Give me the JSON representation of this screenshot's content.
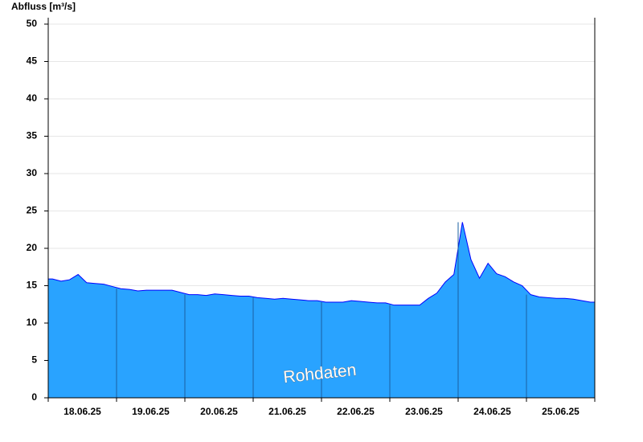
{
  "chart_data": {
    "type": "area",
    "y_label": "Abfluss [m³/s]",
    "annotation": "Rohdaten",
    "categories": [
      null,
      null,
      null,
      null,
      "18.06.25",
      null,
      null,
      null,
      null,
      null,
      null,
      null,
      "19.06.25",
      null,
      null,
      null,
      null,
      null,
      null,
      null,
      "20.06.25",
      null,
      null,
      null,
      null,
      null,
      null,
      null,
      "21.06.25",
      null,
      null,
      null,
      null,
      null,
      null,
      null,
      "22.06.25",
      null,
      null,
      null,
      null,
      null,
      null,
      null,
      "23.06.25",
      null,
      null,
      null,
      null,
      null,
      null,
      null,
      "24.06.25",
      null,
      null,
      null,
      null,
      null,
      null,
      null,
      "25.06.25",
      null,
      null,
      null
    ],
    "series": [
      {
        "name": "Abfluss",
        "color": "#29a3ff",
        "line_color": "#0000ff",
        "values": [
          15.9,
          15.6,
          15.8,
          16.5,
          15.4,
          15.3,
          15.2,
          14.9,
          14.6,
          14.5,
          14.3,
          14.4,
          14.4,
          14.4,
          14.4,
          14.1,
          13.8,
          13.8,
          13.7,
          13.9,
          13.8,
          13.7,
          13.6,
          13.6,
          13.4,
          13.3,
          13.2,
          13.3,
          13.2,
          13.1,
          13.0,
          13.0,
          12.8,
          12.8,
          12.8,
          13.0,
          12.9,
          12.8,
          12.7,
          12.7,
          12.4,
          12.4,
          12.4,
          12.4,
          13.3,
          14.0,
          15.5,
          16.5,
          23.5,
          18.5,
          16.0,
          18.0,
          16.6,
          16.2,
          15.5,
          15.0,
          13.8,
          13.5,
          13.4,
          13.3,
          13.3,
          13.2,
          13.0,
          12.8
        ]
      }
    ],
    "ylim": [
      0,
      50
    ],
    "yticks": [
      0,
      5,
      10,
      15,
      20,
      25,
      30,
      35,
      40,
      45,
      50
    ],
    "grid": true
  }
}
